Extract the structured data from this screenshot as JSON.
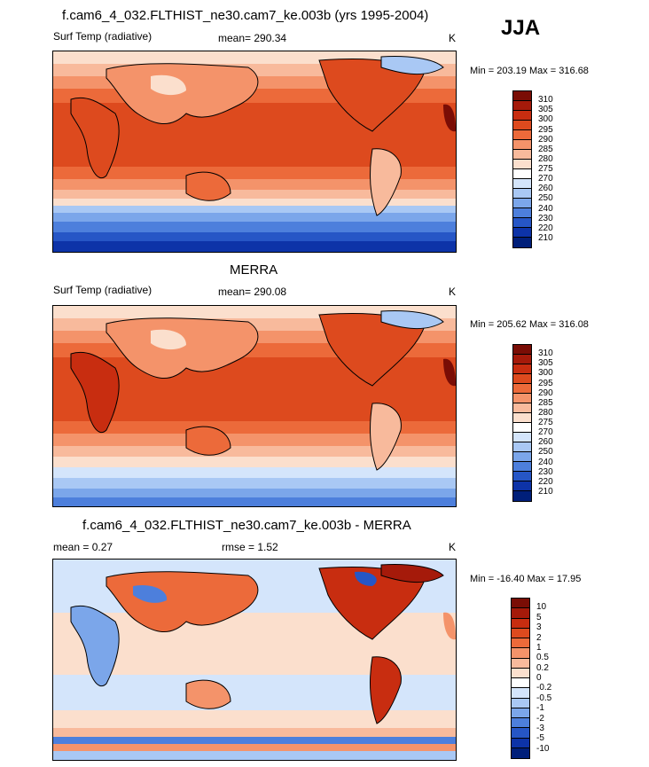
{
  "season": "JJA",
  "panels": [
    {
      "title": "f.cam6_4_032.FLTHIST_ne30.cam7_ke.003b (yrs 1995-2004)",
      "left_label": "Surf Temp (radiative)",
      "center_label": "mean= 290.34",
      "units": "K",
      "minmax": "Min = 203.19 Max = 316.68",
      "colorbar_labels": [
        "310",
        "305",
        "300",
        "295",
        "290",
        "285",
        "280",
        "275",
        "270",
        "260",
        "250",
        "240",
        "230",
        "220",
        "210"
      ],
      "colors": [
        "#7a0d05",
        "#a51a0a",
        "#c82d10",
        "#dd4a1e",
        "#ec6a3a",
        "#f4936a",
        "#f8ba9c",
        "#fbdfcd",
        "#ffffff",
        "#d4e5fb",
        "#a9c8f4",
        "#7ba6ea",
        "#4d7fdc",
        "#2656c6",
        "#0d33a8",
        "#001f7a"
      ]
    },
    {
      "title": "MERRA",
      "left_label": "Surf Temp (radiative)",
      "center_label": "mean= 290.08",
      "units": "K",
      "minmax": "Min = 205.62 Max = 316.08",
      "colorbar_labels": [
        "310",
        "305",
        "300",
        "295",
        "290",
        "285",
        "280",
        "275",
        "270",
        "260",
        "250",
        "240",
        "230",
        "220",
        "210"
      ],
      "colors": [
        "#7a0d05",
        "#a51a0a",
        "#c82d10",
        "#dd4a1e",
        "#ec6a3a",
        "#f4936a",
        "#f8ba9c",
        "#fbdfcd",
        "#ffffff",
        "#d4e5fb",
        "#a9c8f4",
        "#7ba6ea",
        "#4d7fdc",
        "#2656c6",
        "#0d33a8",
        "#001f7a"
      ]
    },
    {
      "title": "f.cam6_4_032.FLTHIST_ne30.cam7_ke.003b - MERRA",
      "left_label": "mean =   0.27",
      "center_label": "rmse =   1.52",
      "units": "K",
      "minmax": "Min = -16.40 Max =  17.95",
      "colorbar_labels": [
        "10",
        "5",
        "3",
        "2",
        "1",
        "0.5",
        "0.2",
        "0",
        "-0.2",
        "-0.5",
        "-1",
        "-2",
        "-3",
        "-5",
        "-10"
      ],
      "colors": [
        "#7a0d05",
        "#a51a0a",
        "#c82d10",
        "#dd4a1e",
        "#ec6a3a",
        "#f4936a",
        "#f8ba9c",
        "#fbdfcd",
        "#ffffff",
        "#d4e5fb",
        "#a9c8f4",
        "#7ba6ea",
        "#4d7fdc",
        "#2656c6",
        "#0d33a8",
        "#001f7a"
      ]
    }
  ]
}
